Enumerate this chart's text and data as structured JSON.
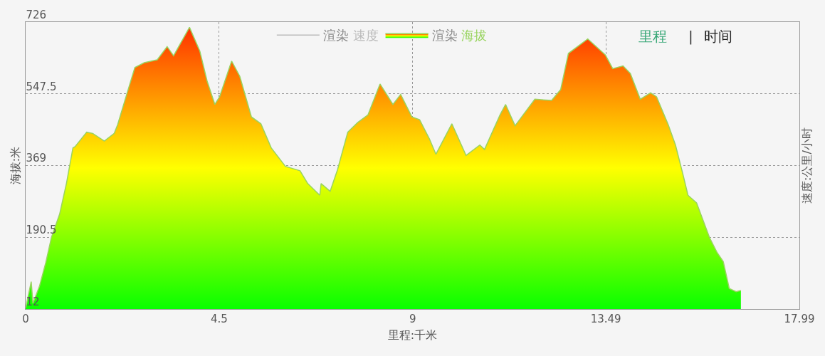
{
  "chart_data": {
    "type": "area",
    "x": [
      0,
      0.13,
      0.17,
      0.32,
      0.47,
      0.6,
      0.79,
      0.95,
      1.1,
      1.15,
      1.42,
      1.56,
      1.83,
      2.06,
      2.14,
      2.35,
      2.54,
      2.76,
      3.06,
      3.29,
      3.44,
      3.81,
      4.05,
      4.22,
      4.4,
      4.51,
      4.79,
      4.98,
      5.25,
      5.47,
      5.71,
      6.04,
      6.38,
      6.56,
      6.84,
      6.87,
      7.08,
      7.25,
      7.49,
      7.72,
      7.96,
      8.24,
      8.54,
      8.72,
      8.98,
      9.16,
      9.39,
      9.54,
      9.91,
      10.24,
      10.56,
      10.67,
      11.03,
      11.16,
      11.38,
      11.84,
      12.23,
      12.44,
      12.62,
      13.07,
      13.48,
      13.65,
      13.89,
      14.06,
      14.29,
      14.53,
      14.67,
      14.94,
      15.11,
      15.29,
      15.4,
      15.6,
      15.9,
      16.08,
      16.22,
      16.36,
      16.52,
      16.63
    ],
    "series": [
      {
        "name": "渲染 速度",
        "color": "#bbbbbb",
        "axis": "y2",
        "values": [
          null,
          null,
          null,
          null,
          null,
          null,
          null,
          null,
          null,
          null,
          null,
          null,
          null,
          null,
          null,
          null,
          null,
          null,
          null,
          null,
          null,
          null,
          null,
          null,
          null,
          null,
          null,
          null,
          null,
          null,
          null,
          null,
          null,
          null,
          null,
          null,
          null,
          null,
          null,
          null,
          null,
          null,
          null,
          null,
          null,
          null,
          null,
          null,
          null,
          null,
          null,
          null,
          null,
          null,
          null,
          null,
          null,
          null,
          null,
          null,
          null,
          null,
          null,
          null,
          null,
          null,
          null,
          null,
          null,
          null,
          null,
          null,
          null,
          null,
          null,
          null,
          null,
          null
        ]
      },
      {
        "name": "渲染 海拔",
        "color": "#99d460",
        "values": [
          14,
          80,
          26,
          68,
          128,
          190,
          248,
          325,
          413,
          416,
          452,
          449,
          430,
          449,
          471,
          546,
          613,
          625,
          632,
          665,
          642,
          713,
          654,
          579,
          521,
          540,
          629,
          591,
          490,
          473,
          413,
          367,
          356,
          324,
          295,
          324,
          305,
          358,
          452,
          476,
          495,
          572,
          521,
          546,
          490,
          483,
          435,
          397,
          473,
          394,
          420,
          409,
          495,
          521,
          468,
          534,
          531,
          558,
          648,
          684,
          644,
          610,
          617,
          598,
          534,
          550,
          540,
          471,
          420,
          344,
          295,
          276,
          190,
          152,
          130,
          63,
          55,
          58
        ]
      }
    ],
    "xlim": [
      0,
      17.99
    ],
    "xticks": [
      0,
      4.5,
      9,
      13.49,
      17.99
    ],
    "ylim": [
      12,
      726
    ],
    "yticks": [
      12,
      190.5,
      369,
      547.5,
      726
    ],
    "xlabel": "里程:千米",
    "ylabel": "海拔:米",
    "y2label": "速度:公里/小时",
    "annotations": [
      "里程",
      "|",
      "时间"
    ],
    "grid": true,
    "legend": "top"
  }
}
